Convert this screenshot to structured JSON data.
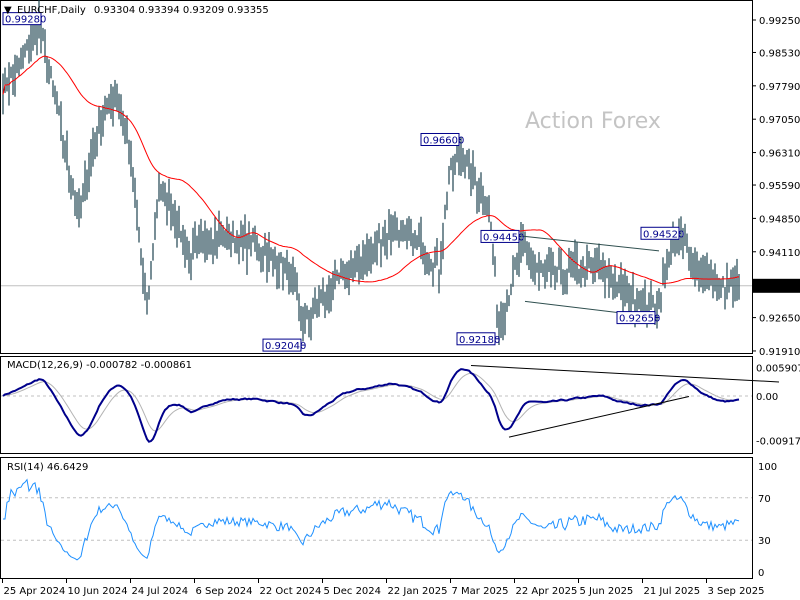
{
  "header": {
    "symbol": "EURCHF,Daily",
    "ohlc": "0.93304 0.93394 0.93209 0.93355"
  },
  "watermark": "Action Forex",
  "macd_header": "MACD(12,26,9) -0.000782 -0.000861",
  "rsi_header": "RSI(14) 46.6429",
  "colors": {
    "bars": "#1e4450",
    "ma": "#ff0000",
    "macd": "#00008b",
    "signal": "#b4b4b4",
    "rsi": "#1e90ff",
    "labels": "#00008b"
  },
  "chart_data": {
    "type": "bar",
    "title": "EURCHF,Daily",
    "price_axis": {
      "ticks": [
        "0.99250",
        "0.98530",
        "0.97790",
        "0.97050",
        "0.96310",
        "0.95590",
        "0.94850",
        "0.94110",
        "0.92650",
        "0.91910"
      ],
      "current": "0.93355",
      "range": [
        0.9191,
        0.9925
      ]
    },
    "x_ticks": [
      "25 Apr 2024",
      "10 Jun 2024",
      "24 Jul 2024",
      "6 Sep 2024",
      "22 Oct 2024",
      "5 Dec 2024",
      "22 Jan 2025",
      "7 Mar 2025",
      "22 Apr 2025",
      "5 Jun 2025",
      "21 Jul 2025",
      "3 Sep 2025"
    ],
    "close_anchors_by_bar_index": [
      [
        0,
        0.978
      ],
      [
        8,
        0.982
      ],
      [
        18,
        0.9915
      ],
      [
        26,
        0.975
      ],
      [
        38,
        0.949
      ],
      [
        48,
        0.97
      ],
      [
        57,
        0.976
      ],
      [
        63,
        0.965
      ],
      [
        72,
        0.928
      ],
      [
        78,
        0.955
      ],
      [
        86,
        0.95
      ],
      [
        93,
        0.94
      ],
      [
        103,
        0.945
      ],
      [
        113,
        0.944
      ],
      [
        128,
        0.942
      ],
      [
        143,
        0.937
      ],
      [
        150,
        0.925
      ],
      [
        158,
        0.93
      ],
      [
        171,
        0.936
      ],
      [
        183,
        0.94
      ],
      [
        193,
        0.946
      ],
      [
        208,
        0.943
      ],
      [
        218,
        0.937
      ],
      [
        223,
        0.958
      ],
      [
        229,
        0.963
      ],
      [
        238,
        0.955
      ],
      [
        243,
        0.95
      ],
      [
        248,
        0.925
      ],
      [
        253,
        0.932
      ],
      [
        259,
        0.942
      ],
      [
        270,
        0.936
      ],
      [
        284,
        0.937
      ],
      [
        298,
        0.938
      ],
      [
        308,
        0.933
      ],
      [
        323,
        0.929
      ],
      [
        328,
        0.929
      ],
      [
        333,
        0.941
      ],
      [
        339,
        0.944
      ],
      [
        348,
        0.937
      ],
      [
        358,
        0.933
      ],
      [
        368,
        0.9335
      ]
    ],
    "price_labels": [
      {
        "text": "0.99280",
        "bar": 19,
        "price": 0.9928
      },
      {
        "text": "0.96600",
        "bar": 229,
        "price": 0.966
      },
      {
        "text": "0.94450",
        "bar": 259,
        "price": 0.9445
      },
      {
        "text": "0.94520",
        "bar": 339,
        "price": 0.9452
      },
      {
        "text": "0.92040",
        "bar": 151,
        "price": 0.9204
      },
      {
        "text": "0.92180",
        "bar": 248,
        "price": 0.9218
      },
      {
        "text": "0.92650",
        "bar": 328,
        "price": 0.9265
      }
    ],
    "trendlines_price": [
      [
        [
          259,
          0.9446
        ],
        [
          328,
          0.9413
        ]
      ],
      [
        [
          261,
          0.9301
        ],
        [
          328,
          0.9265
        ]
      ]
    ],
    "macd_axis": {
      "ticks": [
        "0.005907",
        "0.00",
        "-0.009175"
      ],
      "range": [
        -0.009175,
        0.005907
      ]
    },
    "macd_trendlines": [
      [
        [
          234,
          0.0063
        ],
        [
          388,
          0.0029
        ]
      ],
      [
        [
          253,
          -0.0085
        ],
        [
          343,
          -0.0001
        ]
      ]
    ],
    "rsi_axis": {
      "ticks": [
        "100",
        "70",
        "30",
        "0"
      ],
      "levels": [
        70,
        30
      ]
    }
  }
}
